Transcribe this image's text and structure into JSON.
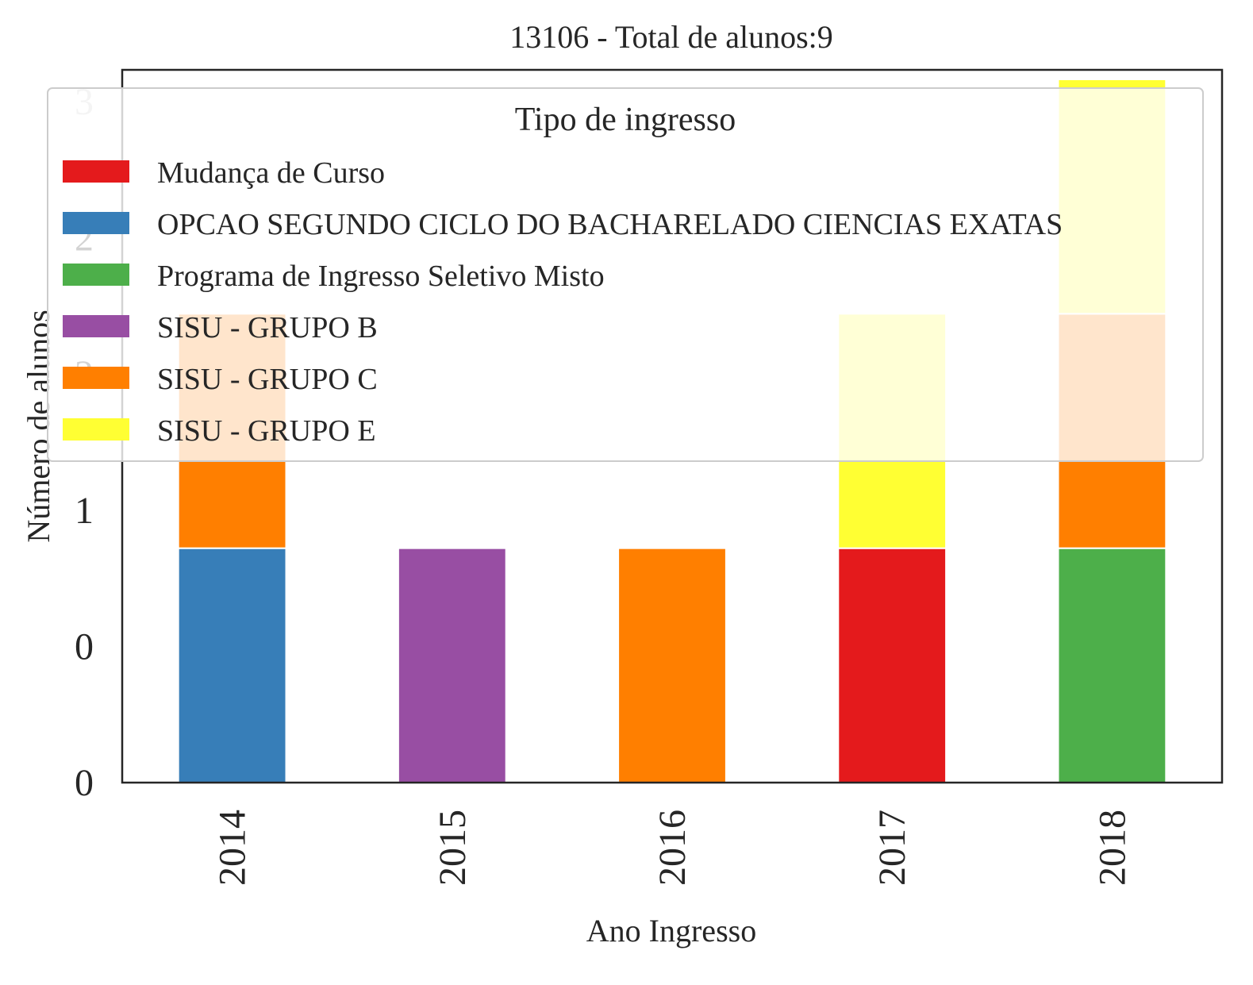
{
  "chart_data": {
    "type": "bar",
    "stacked": true,
    "title": "13106 - Total de alunos:9",
    "xlabel": "Ano Ingresso",
    "ylabel": "Número de alunos",
    "categories": [
      "2014",
      "2015",
      "2016",
      "2017",
      "2018"
    ],
    "ylim": [
      0,
      3
    ],
    "y_tick_labels": [
      "0",
      "0",
      "1",
      "2",
      "2",
      "3"
    ],
    "grid": false,
    "legend": {
      "title": "Tipo de ingresso",
      "placement": "top",
      "entries": [
        "Mudança de Curso",
        "OPCAO SEGUNDO CICLO DO BACHARELADO CIENCIAS EXATAS",
        "Programa de Ingresso Seletivo Misto",
        "SISU - GRUPO B",
        "SISU - GRUPO C",
        "SISU - GRUPO E"
      ]
    },
    "series": [
      {
        "name": "Mudança de Curso",
        "color": "#e41a1c",
        "values": [
          0,
          0,
          0,
          1,
          0
        ]
      },
      {
        "name": "OPCAO SEGUNDO CICLO DO BACHARELADO CIENCIAS EXATAS",
        "color": "#377eb8",
        "values": [
          1,
          0,
          0,
          0,
          0
        ]
      },
      {
        "name": "Programa de Ingresso Seletivo Misto",
        "color": "#4daf4a",
        "values": [
          0,
          0,
          0,
          0,
          1
        ]
      },
      {
        "name": "SISU - GRUPO B",
        "color": "#984ea3",
        "values": [
          0,
          1,
          0,
          0,
          0
        ]
      },
      {
        "name": "SISU - GRUPO C",
        "color": "#ff7f00",
        "values": [
          1,
          0,
          1,
          0,
          1
        ]
      },
      {
        "name": "SISU - GRUPO E",
        "color": "#ffff33",
        "values": [
          0,
          0,
          0,
          1,
          1
        ]
      }
    ]
  }
}
